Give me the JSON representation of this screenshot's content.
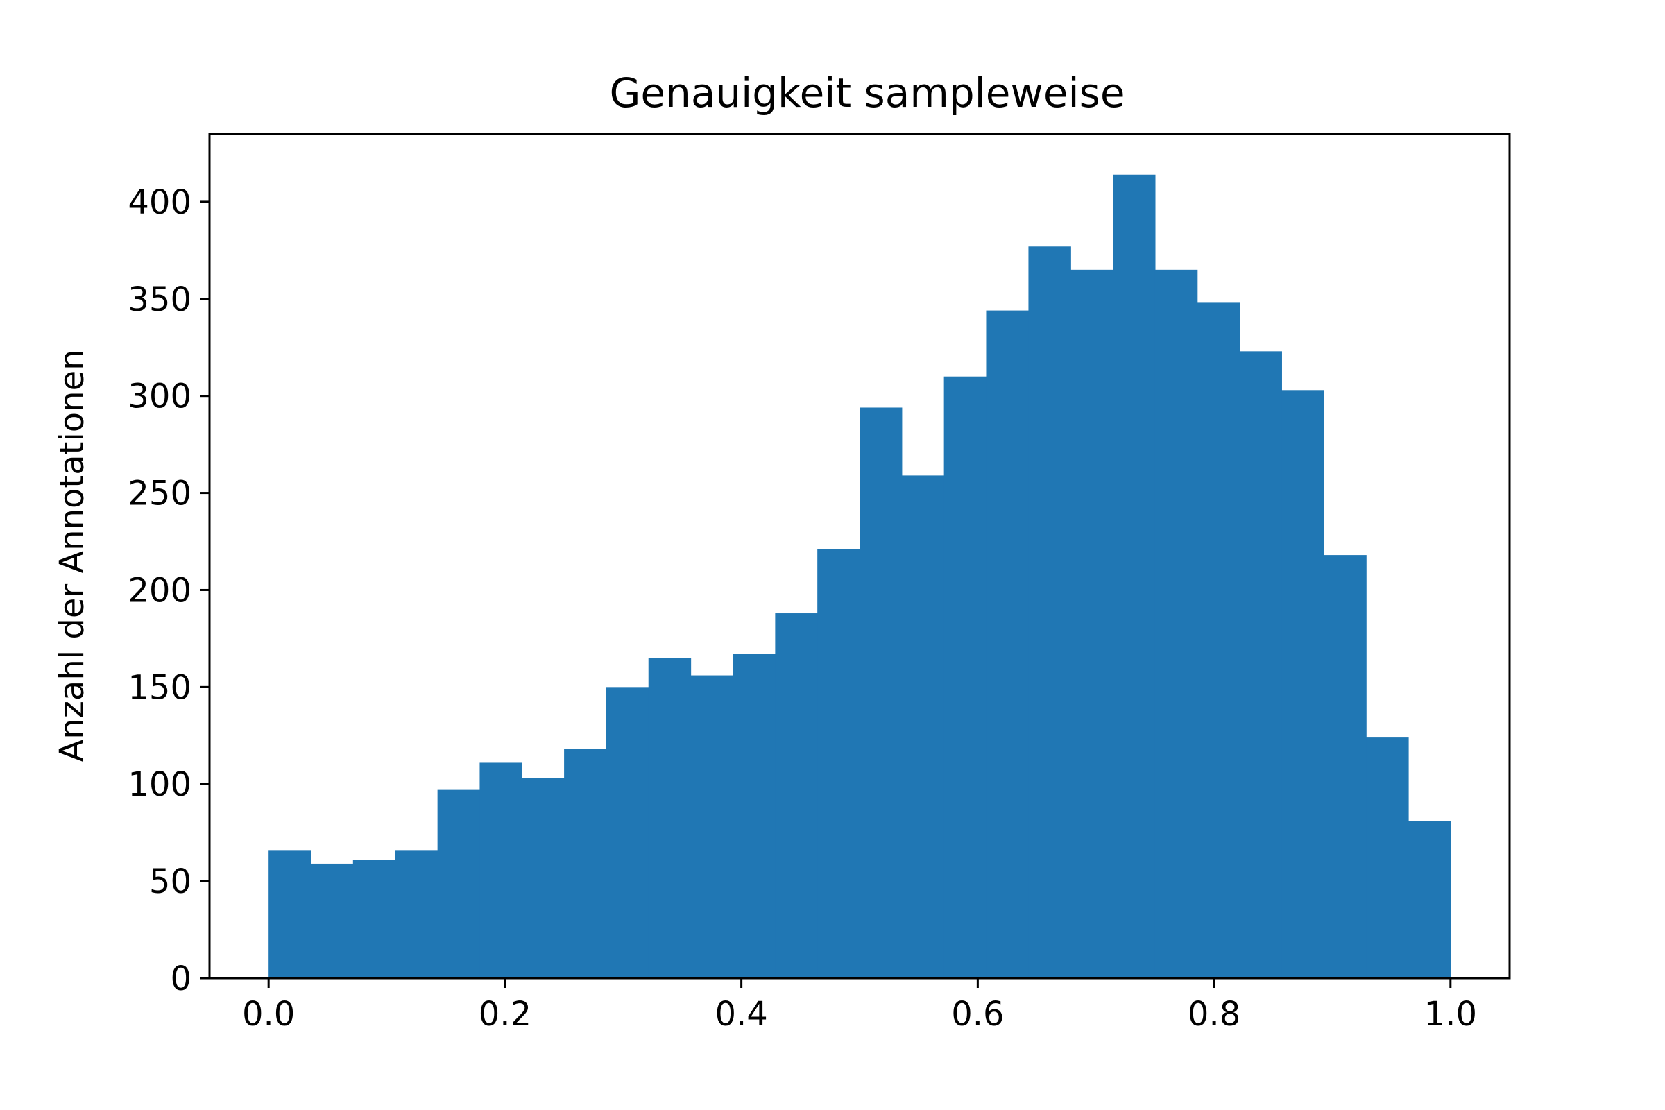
{
  "chart_data": {
    "type": "bar",
    "subtype": "histogram",
    "title": "Genauigkeit sampleweise",
    "xlabel": "",
    "ylabel": "Anzahl der Annotationen",
    "xlim": [
      -0.05,
      1.05
    ],
    "ylim": [
      0,
      435
    ],
    "grid": false,
    "legend": "none",
    "color": "#2077b4",
    "bin_edges": [
      0.0,
      0.0357,
      0.0714,
      0.1071,
      0.1429,
      0.1786,
      0.2143,
      0.25,
      0.2857,
      0.3214,
      0.3571,
      0.3929,
      0.4286,
      0.4643,
      0.5,
      0.5357,
      0.5714,
      0.6071,
      0.6429,
      0.6786,
      0.7143,
      0.75,
      0.7857,
      0.8214,
      0.8571,
      0.8929,
      0.9286,
      0.9643,
      1.0
    ],
    "values": [
      66,
      59,
      61,
      66,
      97,
      111,
      103,
      118,
      150,
      165,
      156,
      167,
      188,
      221,
      294,
      259,
      310,
      344,
      377,
      365,
      414,
      365,
      348,
      323,
      303,
      218,
      124,
      81
    ],
    "x_ticks": [
      {
        "value": 0.0,
        "label": "0.0"
      },
      {
        "value": 0.2,
        "label": "0.2"
      },
      {
        "value": 0.4,
        "label": "0.4"
      },
      {
        "value": 0.6,
        "label": "0.6"
      },
      {
        "value": 0.8,
        "label": "0.8"
      },
      {
        "value": 1.0,
        "label": "1.0"
      }
    ],
    "y_ticks": [
      {
        "value": 0,
        "label": "0"
      },
      {
        "value": 50,
        "label": "50"
      },
      {
        "value": 100,
        "label": "100"
      },
      {
        "value": 150,
        "label": "150"
      },
      {
        "value": 200,
        "label": "200"
      },
      {
        "value": 250,
        "label": "250"
      },
      {
        "value": 300,
        "label": "300"
      },
      {
        "value": 350,
        "label": "350"
      },
      {
        "value": 400,
        "label": "400"
      }
    ]
  }
}
